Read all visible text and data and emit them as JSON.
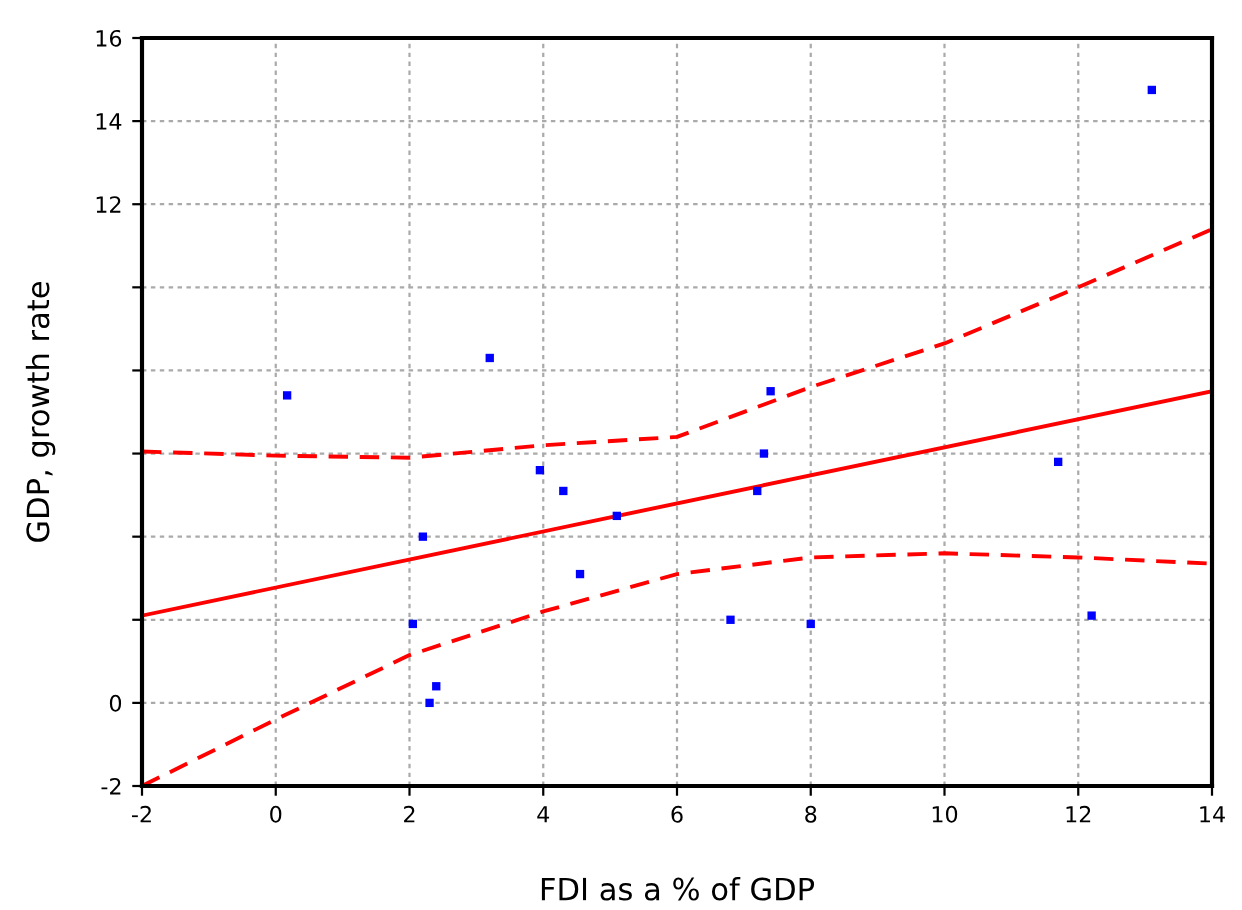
{
  "chart_data": {
    "type": "scatter",
    "xlabel": "FDI as a % of GDP",
    "ylabel": "GDP, growth rate",
    "xlim": [
      -2,
      14
    ],
    "ylim": [
      -2,
      16
    ],
    "xticks": [
      -2,
      0,
      2,
      4,
      6,
      8,
      10,
      12,
      14
    ],
    "yticks": [
      -2,
      0,
      {
        "value": 2,
        "label": null
      },
      {
        "value": 4,
        "label": null
      },
      {
        "value": 6,
        "label": null
      },
      {
        "value": 8,
        "label": null
      },
      {
        "value": 10,
        "label": null
      },
      12,
      14,
      16
    ],
    "grid": true,
    "marker": "square",
    "series": [
      {
        "color": "#0000ff",
        "x": [
          0.17,
          3.2,
          2.2,
          2.05,
          2.3,
          2.4,
          3.95,
          4.3,
          4.55,
          5.1,
          7.4,
          7.3,
          7.2,
          6.8,
          8.0,
          11.7,
          12.2,
          13.1
        ],
        "values": [
          7.4,
          8.3,
          4.0,
          1.9,
          0.0,
          0.4,
          5.6,
          5.1,
          3.1,
          4.5,
          7.5,
          6.0,
          5.1,
          2.0,
          1.9,
          5.8,
          2.1,
          14.75
        ]
      },
      {
        "type": "line",
        "color": "#ff0000",
        "line_style": "solid",
        "marker": "none",
        "x": [
          -2,
          14
        ],
        "values": [
          2.1,
          7.5
        ]
      },
      {
        "type": "line",
        "color": "#ff0000",
        "line_style": "dashed",
        "marker": "none",
        "x": [
          -2,
          0,
          2,
          4,
          6,
          8,
          10,
          12,
          14
        ],
        "values": [
          6.05,
          5.95,
          5.9,
          6.2,
          6.4,
          7.6,
          8.65,
          10.0,
          11.4
        ]
      },
      {
        "type": "line",
        "color": "#ff0000",
        "line_style": "dashed",
        "marker": "none",
        "x": [
          -2,
          0,
          2,
          4,
          6,
          8,
          10,
          12,
          14
        ],
        "values": [
          -2.0,
          -0.4,
          1.15,
          2.2,
          3.1,
          3.5,
          3.6,
          3.5,
          3.35
        ]
      }
    ]
  }
}
